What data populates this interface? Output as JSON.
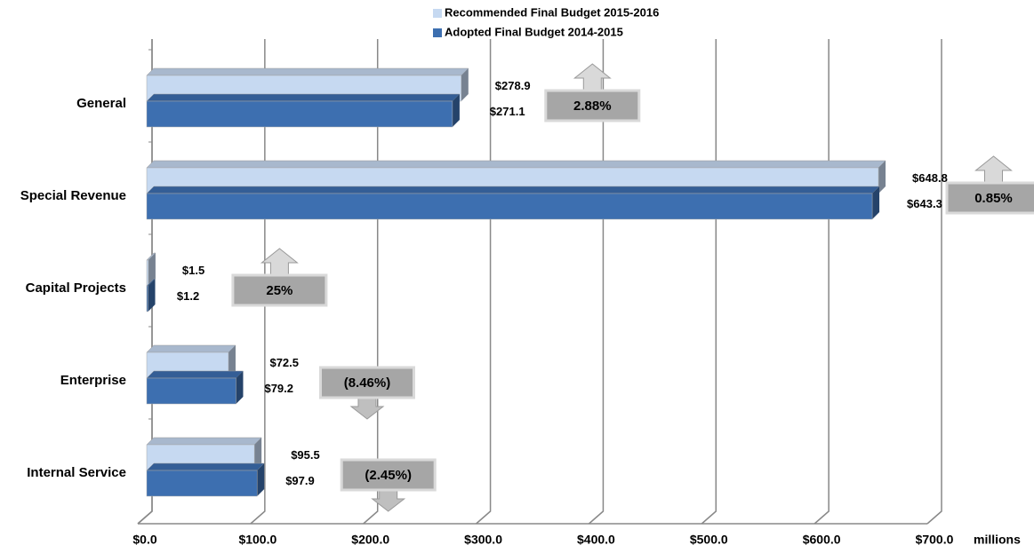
{
  "chart_data": {
    "type": "hbar3d",
    "categories": [
      "General",
      "Special Revenue",
      "Capital Projects",
      "Enterprise",
      "Internal Service"
    ],
    "series": [
      {
        "name": "Recommended Final Budget 2015-2016",
        "color": "#c6d9f1",
        "values": [
          278.9,
          648.8,
          1.5,
          72.5,
          95.5
        ],
        "value_labels": [
          "$278.9",
          "$648.8",
          "$1.5",
          "$72.5",
          "$95.5"
        ]
      },
      {
        "name": "Adopted Final Budget 2014-2015",
        "color": "#3d6fb0",
        "values": [
          271.1,
          643.3,
          1.2,
          79.2,
          97.9
        ],
        "value_labels": [
          "$271.1",
          "$643.3",
          "$1.2",
          "$79.2",
          "$97.9"
        ]
      }
    ],
    "annotations": [
      "2.88%",
      "0.85%",
      "25%",
      "(8.46%)",
      "(2.45%)"
    ],
    "xlim": [
      0,
      700
    ],
    "xticks": [
      {
        "value": 0,
        "label": "$0.0"
      },
      {
        "value": 100,
        "label": "$100.0"
      },
      {
        "value": 200,
        "label": "$200.0"
      },
      {
        "value": 300,
        "label": "$300.0"
      },
      {
        "value": 400,
        "label": "$400.0"
      },
      {
        "value": 500,
        "label": "$500.0"
      },
      {
        "value": 600,
        "label": "$600.0"
      },
      {
        "value": 700,
        "label": "$700.0"
      }
    ],
    "x_label": "millions",
    "grid": true,
    "legend": "top"
  }
}
